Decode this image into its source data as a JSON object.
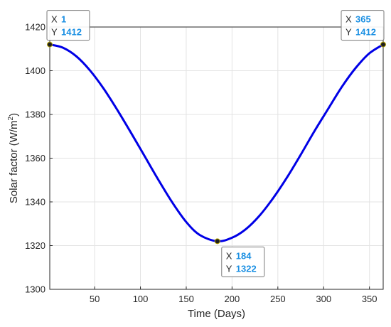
{
  "chart_data": {
    "type": "line",
    "xlabel": "Time (Days)",
    "ylabel": "Solar factor (W/m",
    "ylabel_superscript": "2",
    "ylabel_suffix": ")",
    "xlim": [
      1,
      365
    ],
    "ylim": [
      1300,
      1420
    ],
    "x_ticks": [
      50,
      100,
      150,
      200,
      250,
      300,
      350
    ],
    "y_ticks": [
      1300,
      1320,
      1340,
      1360,
      1380,
      1400,
      1420
    ],
    "grid": true,
    "line_color": "#0000e6",
    "series": [
      {
        "x": [
          1,
          15,
          30,
          45,
          60,
          75,
          90,
          105,
          120,
          135,
          150,
          165,
          184,
          200,
          215,
          230,
          245,
          260,
          275,
          290,
          305,
          320,
          335,
          350,
          365
        ],
        "y": [
          1412,
          1410.6,
          1406.6,
          1400.1,
          1391.7,
          1381.9,
          1371.4,
          1360.6,
          1349.8,
          1339.6,
          1330.8,
          1324.8,
          1322,
          1323.6,
          1327.5,
          1333.7,
          1341.8,
          1351.2,
          1361.6,
          1372.4,
          1382.6,
          1392.7,
          1401.3,
          1408,
          1412
        ]
      }
    ],
    "datatips": [
      {
        "key_x": "X",
        "x": "1",
        "key_y": "Y",
        "y": "1412"
      },
      {
        "key_x": "X",
        "x": "184",
        "key_y": "Y",
        "y": "1322"
      },
      {
        "key_x": "X",
        "x": "365",
        "key_y": "Y",
        "y": "1412"
      }
    ]
  }
}
